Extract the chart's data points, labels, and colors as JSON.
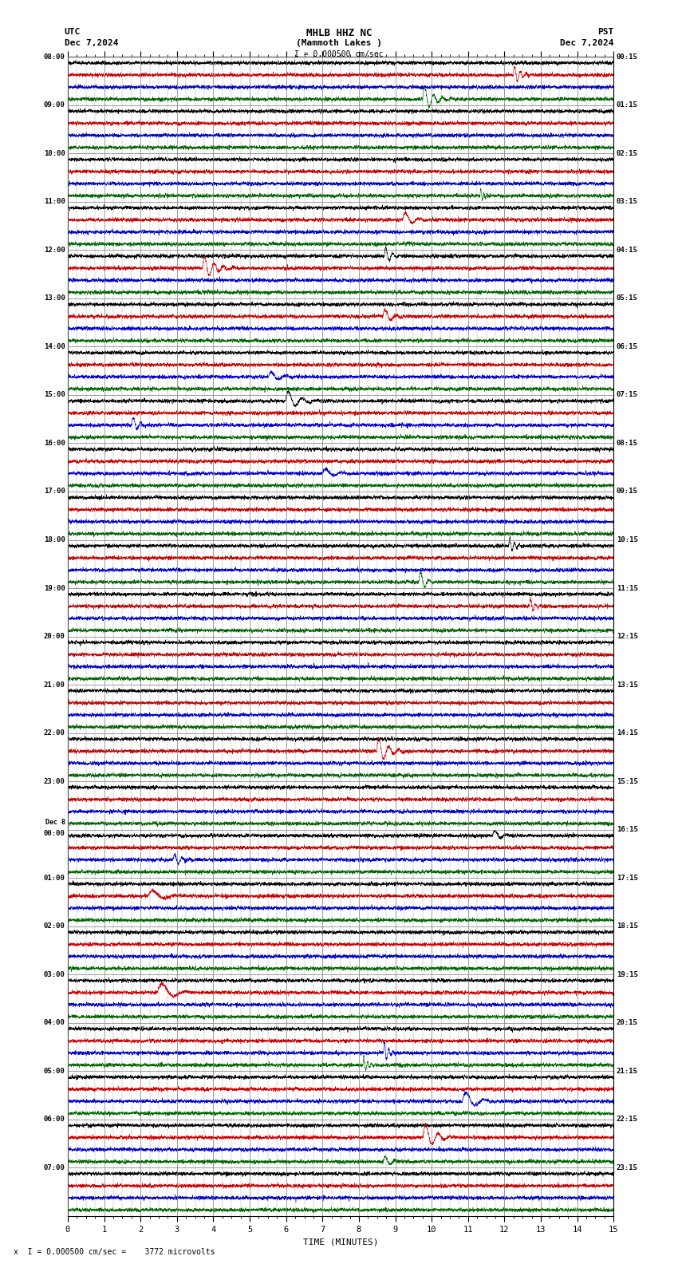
{
  "title_line1": "MHLB HHZ NC",
  "title_line2": "(Mammoth Lakes )",
  "scale_label": "I = 0.000500 cm/sec",
  "utc_label": "UTC",
  "utc_date": "Dec 7,2024",
  "pst_label": "PST",
  "pst_date": "Dec 7,2024",
  "bottom_label": "x  I = 0.000500 cm/sec =    3772 microvolts",
  "xlabel": "TIME (MINUTES)",
  "time_minutes": 15,
  "colors": [
    "#000000",
    "#cc0000",
    "#0000cc",
    "#006600"
  ],
  "bg_color": "#ffffff",
  "grid_color": "#777777",
  "text_color": "#000000",
  "left_times_utc": [
    "08:00",
    "09:00",
    "10:00",
    "11:00",
    "12:00",
    "13:00",
    "14:00",
    "15:00",
    "16:00",
    "17:00",
    "18:00",
    "19:00",
    "20:00",
    "21:00",
    "22:00",
    "23:00",
    "Dec 8\n00:00",
    "01:00",
    "02:00",
    "03:00",
    "04:00",
    "05:00",
    "06:00",
    "07:00"
  ],
  "right_times_pst": [
    "00:15",
    "01:15",
    "02:15",
    "03:15",
    "04:15",
    "05:15",
    "06:15",
    "07:15",
    "08:15",
    "09:15",
    "10:15",
    "11:15",
    "12:15",
    "13:15",
    "14:15",
    "15:15",
    "16:15",
    "17:15",
    "18:15",
    "19:15",
    "20:15",
    "21:15",
    "22:15",
    "23:15"
  ],
  "num_rows": 24,
  "traces_per_row": 4,
  "noise_amplitude": [
    0.35,
    0.25,
    0.28,
    0.18
  ],
  "seed": 42
}
